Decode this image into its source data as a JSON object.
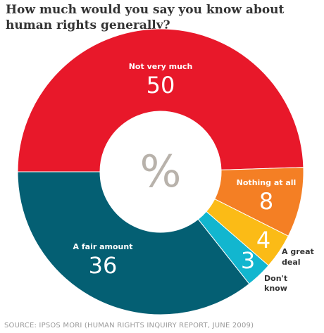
{
  "chart_data": {
    "type": "pie",
    "title": "How much would you say you know about human rights generally?",
    "center_label": "%",
    "source": "SOURCE: IPSOS MORI (HUMAN RIGHTS INQUIRY REPORT, JUNE 2009)",
    "slices": [
      {
        "label": "Not very much",
        "value": 50,
        "color": "#e8182a",
        "label_position": "inside"
      },
      {
        "label": "Nothing at all",
        "value": 8,
        "color": "#f47f24",
        "label_position": "inside"
      },
      {
        "label": "A great deal",
        "value": 4,
        "color": "#fbbb16",
        "label_position": "outside"
      },
      {
        "label": "Don't know",
        "value": 3,
        "color": "#12b6cf",
        "label_position": "outside"
      },
      {
        "label": "A fair amount",
        "value": 36,
        "color": "#045f73",
        "label_position": "inside"
      }
    ]
  }
}
